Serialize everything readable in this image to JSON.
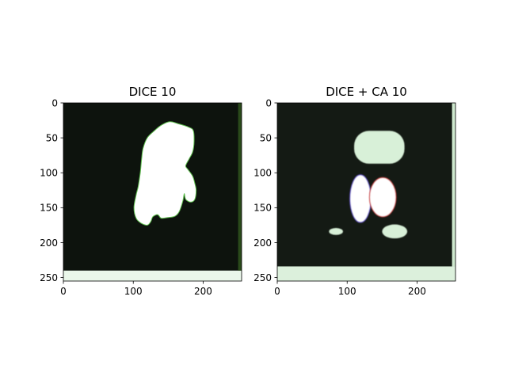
{
  "chart_data": [
    {
      "type": "heatmap",
      "title": "DICE 10",
      "xlim": [
        0,
        255
      ],
      "ylim": [
        255,
        0
      ],
      "xticks": [
        0,
        100,
        200
      ],
      "yticks": [
        0,
        50,
        100,
        150,
        200,
        250
      ],
      "background_color": "#0d130d",
      "regions": [
        {
          "label": "",
          "shape": "blob",
          "color": "#ffffff",
          "outline": "#5fbf4f",
          "points": [
            [
              152,
              27
            ],
            [
              165,
              30
            ],
            [
              180,
              35
            ],
            [
              186,
              40
            ],
            [
              187,
              55
            ],
            [
              185,
              70
            ],
            [
              180,
              80
            ],
            [
              175,
              90
            ],
            [
              178,
              95
            ],
            [
              185,
              105
            ],
            [
              188,
              115
            ],
            [
              190,
              125
            ],
            [
              188,
              138
            ],
            [
              182,
              142
            ],
            [
              175,
              138
            ],
            [
              173,
              130
            ],
            [
              171,
              140
            ],
            [
              166,
              155
            ],
            [
              160,
              162
            ],
            [
              150,
              164
            ],
            [
              140,
              165
            ],
            [
              135,
              160
            ],
            [
              128,
              163
            ],
            [
              125,
              170
            ],
            [
              120,
              175
            ],
            [
              111,
              172
            ],
            [
              104,
              165
            ],
            [
              101,
              150
            ],
            [
              104,
              132
            ],
            [
              107,
              120
            ],
            [
              110,
              100
            ],
            [
              112,
              80
            ],
            [
              114,
              65
            ],
            [
              120,
              50
            ],
            [
              130,
              40
            ],
            [
              140,
              32
            ]
          ]
        },
        {
          "label": "",
          "shape": "band",
          "color": "#eaf7ea",
          "y_range": [
            240,
            255
          ],
          "x_range": [
            0,
            255
          ]
        },
        {
          "label": "",
          "shape": "band",
          "color": "#2a4a1a",
          "y_range": [
            0,
            240
          ],
          "x_range": [
            250,
            255
          ]
        }
      ]
    },
    {
      "type": "heatmap",
      "title": "DICE + CA 10",
      "xlim": [
        0,
        255
      ],
      "ylim": [
        255,
        0
      ],
      "xticks": [
        0,
        100,
        200
      ],
      "yticks": [
        0,
        50,
        100,
        150,
        200,
        250
      ],
      "background_color": "#141a14",
      "regions": [
        {
          "label": "",
          "shape": "rounded-rect",
          "color": "#d8f0d8",
          "x_range": [
            110,
            182
          ],
          "y_range": [
            40,
            87
          ]
        },
        {
          "label": "",
          "shape": "ellipse",
          "color": "#ffffff",
          "outline": "#6655cc",
          "cx": 119,
          "cy": 137,
          "rx": 15,
          "ry": 34
        },
        {
          "label": "",
          "shape": "ellipse",
          "color": "#ffffff",
          "outline": "#cc4444",
          "cx": 151,
          "cy": 135,
          "rx": 19,
          "ry": 28
        },
        {
          "label": "",
          "shape": "ellipse",
          "color": "#d8f0d8",
          "cx": 84,
          "cy": 184,
          "rx": 10,
          "ry": 5
        },
        {
          "label": "",
          "shape": "ellipse",
          "color": "#d8f0d8",
          "cx": 168,
          "cy": 184,
          "rx": 18,
          "ry": 10
        },
        {
          "label": "",
          "shape": "band",
          "color": "#dcf0dc",
          "y_range": [
            234,
            255
          ],
          "x_range": [
            0,
            255
          ]
        },
        {
          "label": "",
          "shape": "band",
          "color": "#cfe9cf",
          "y_range": [
            0,
            234
          ],
          "x_range": [
            250,
            255
          ]
        }
      ]
    }
  ]
}
